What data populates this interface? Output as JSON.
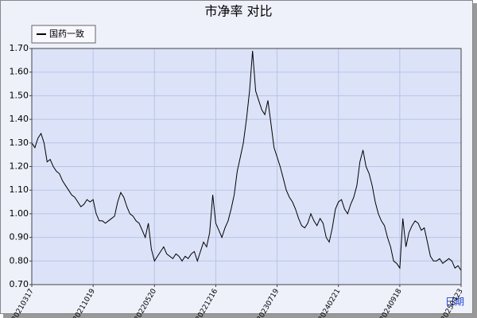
{
  "chart_data": {
    "type": "line",
    "title": "市净率  对比",
    "xlabel": "日期",
    "categories": [
      "20210317",
      null,
      null,
      null,
      null,
      null,
      null,
      null,
      null,
      null,
      null,
      null,
      null,
      null,
      null,
      null,
      null,
      null,
      null,
      null,
      "20211019",
      null,
      null,
      null,
      null,
      null,
      null,
      null,
      null,
      null,
      null,
      null,
      null,
      null,
      null,
      null,
      null,
      null,
      null,
      null,
      "20220520",
      null,
      null,
      null,
      null,
      null,
      null,
      null,
      null,
      null,
      null,
      null,
      null,
      null,
      null,
      null,
      null,
      null,
      null,
      null,
      "20221216",
      null,
      null,
      null,
      null,
      null,
      null,
      null,
      null,
      null,
      null,
      null,
      null,
      null,
      null,
      null,
      null,
      null,
      null,
      null,
      "20230719",
      null,
      null,
      null,
      null,
      null,
      null,
      null,
      null,
      null,
      null,
      null,
      null,
      null,
      null,
      null,
      null,
      null,
      null,
      null,
      "20240221",
      null,
      null,
      null,
      null,
      null,
      null,
      null,
      null,
      null,
      null,
      null,
      null,
      null,
      null,
      null,
      null,
      null,
      null,
      null,
      "20240918",
      null,
      null,
      null,
      null,
      null,
      null,
      null,
      null,
      null,
      null,
      null,
      null,
      null,
      null,
      null,
      null,
      null,
      null,
      null,
      "20250423"
    ],
    "series": [
      {
        "name": "国药一致",
        "color": "#000000",
        "values": [
          1.3,
          1.28,
          1.32,
          1.34,
          1.3,
          1.22,
          1.23,
          1.2,
          1.18,
          1.17,
          1.14,
          1.12,
          1.1,
          1.08,
          1.07,
          1.05,
          1.03,
          1.04,
          1.06,
          1.05,
          1.06,
          1.0,
          0.97,
          0.97,
          0.96,
          0.97,
          0.98,
          0.99,
          1.05,
          1.09,
          1.07,
          1.03,
          1.0,
          0.99,
          0.97,
          0.96,
          0.93,
          0.9,
          0.96,
          0.85,
          0.8,
          0.82,
          0.84,
          0.86,
          0.83,
          0.82,
          0.81,
          0.83,
          0.82,
          0.8,
          0.82,
          0.81,
          0.83,
          0.84,
          0.8,
          0.84,
          0.88,
          0.86,
          0.92,
          1.08,
          0.96,
          0.93,
          0.9,
          0.94,
          0.97,
          1.02,
          1.08,
          1.18,
          1.24,
          1.3,
          1.4,
          1.52,
          1.69,
          1.52,
          1.48,
          1.44,
          1.42,
          1.48,
          1.38,
          1.28,
          1.24,
          1.2,
          1.15,
          1.1,
          1.07,
          1.05,
          1.02,
          0.98,
          0.95,
          0.94,
          0.96,
          1.0,
          0.97,
          0.95,
          0.98,
          0.96,
          0.9,
          0.88,
          0.94,
          1.02,
          1.05,
          1.06,
          1.02,
          1.0,
          1.04,
          1.07,
          1.12,
          1.22,
          1.27,
          1.2,
          1.17,
          1.12,
          1.05,
          1.0,
          0.97,
          0.95,
          0.9,
          0.86,
          0.8,
          0.79,
          0.77,
          0.98,
          0.86,
          0.92,
          0.95,
          0.97,
          0.96,
          0.93,
          0.94,
          0.88,
          0.82,
          0.8,
          0.8,
          0.81,
          0.79,
          0.8,
          0.81,
          0.8,
          0.77,
          0.78,
          0.76
        ]
      }
    ],
    "ylim": [
      0.7,
      1.7
    ],
    "yticks": [
      {
        "value": 0.7,
        "label": "0.70"
      },
      {
        "value": 0.8,
        "label": "0.80"
      },
      {
        "value": 0.9,
        "label": "0.90"
      },
      {
        "value": 1.0,
        "label": "1.00"
      },
      {
        "value": 1.1,
        "label": "1.10"
      },
      {
        "value": 1.2,
        "label": "1.20"
      },
      {
        "value": 1.3,
        "label": "1.30"
      },
      {
        "value": 1.4,
        "label": "1.40"
      },
      {
        "value": 1.5,
        "label": "1.50"
      },
      {
        "value": 1.6,
        "label": "1.60"
      },
      {
        "value": 1.7,
        "label": "1.70"
      }
    ],
    "grid": true,
    "legend": "top-left"
  }
}
